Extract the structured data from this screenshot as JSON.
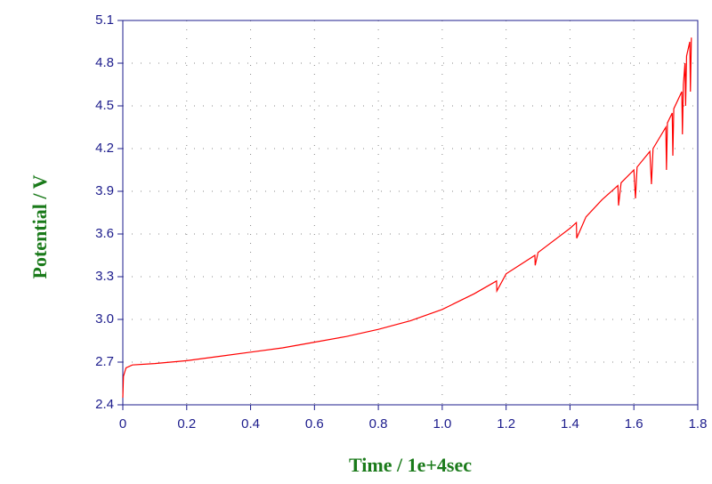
{
  "chart_data": {
    "type": "line",
    "x_label": "Time / 1e+4sec",
    "y_label": "Potential / V",
    "xlim": [
      0,
      1.8
    ],
    "ylim": [
      2.4,
      5.1
    ],
    "xticks": [
      0,
      0.2,
      0.4,
      0.6,
      0.8,
      {
        "value": 1,
        "label": "1.0"
      },
      1.2,
      1.4,
      1.6,
      1.8
    ],
    "yticks": [
      2.4,
      2.7,
      {
        "value": 3,
        "label": "3.0"
      },
      3.3,
      3.6,
      3.9,
      4.2,
      4.5,
      4.8,
      5.1
    ],
    "grid": true,
    "series": [
      {
        "color": "#ff0000",
        "x": [
          0,
          0.002,
          0.01,
          0.03,
          0.1,
          0.2,
          0.3,
          0.4,
          0.5,
          0.6,
          0.7,
          0.8,
          0.9,
          1.0,
          1.1,
          1.17,
          1.171,
          1.2,
          1.29,
          1.291,
          1.3,
          1.4,
          1.42,
          1.421,
          1.45,
          1.5,
          1.55,
          1.552,
          1.56,
          1.6,
          1.605,
          1.61,
          1.65,
          1.655,
          1.66,
          1.7,
          1.702,
          1.705,
          1.72,
          1.722,
          1.725,
          1.75,
          1.752,
          1.755,
          1.76,
          1.762,
          1.765,
          1.775,
          1.777,
          1.78
        ],
        "values": [
          2.45,
          2.6,
          2.66,
          2.68,
          2.69,
          2.71,
          2.74,
          2.77,
          2.8,
          2.84,
          2.88,
          2.93,
          2.99,
          3.07,
          3.18,
          3.27,
          3.2,
          3.32,
          3.45,
          3.38,
          3.47,
          3.64,
          3.68,
          3.57,
          3.72,
          3.84,
          3.94,
          3.8,
          3.96,
          4.05,
          3.85,
          4.07,
          4.18,
          3.95,
          4.2,
          4.35,
          4.05,
          4.38,
          4.45,
          4.15,
          4.48,
          4.6,
          4.3,
          4.65,
          4.8,
          4.5,
          4.85,
          4.95,
          4.6,
          4.98
        ]
      }
    ]
  }
}
